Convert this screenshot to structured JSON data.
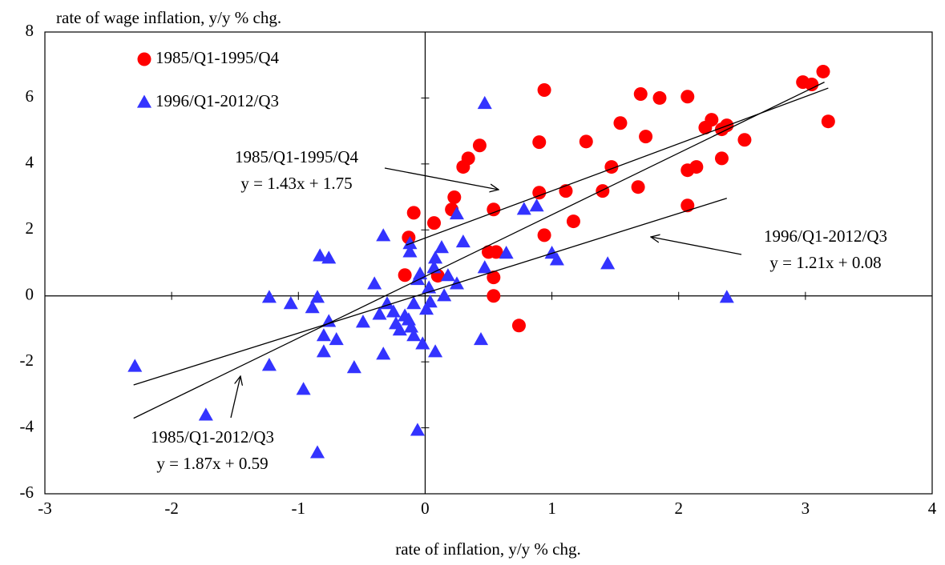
{
  "chart_data": {
    "type": "scatter",
    "y_label": "rate of wage inflation, y/y % chg.",
    "x_label": "rate of inflation, y/y % chg.",
    "xlim": [
      -3,
      4
    ],
    "xticks": [
      -3,
      -2,
      -1,
      0,
      1,
      2,
      3,
      4
    ],
    "ylim": [
      -6,
      8
    ],
    "yticks": [
      -6,
      -4,
      -2,
      0,
      2,
      4,
      6,
      8
    ],
    "legend": "upper left",
    "series": [
      {
        "name": "1985/Q1-1995/Q4",
        "color": "#ff0000",
        "marker": "circle",
        "x": [
          3.14,
          2.98,
          3.05,
          3.18,
          2.52,
          2.38,
          2.34,
          2.21,
          2.26,
          2.34,
          2.07,
          2.14,
          2.07,
          2.07,
          1.7,
          1.85,
          1.74,
          1.54,
          1.47,
          1.4,
          1.68,
          1.17,
          1.27,
          1.11,
          0.94,
          0.9,
          0.9,
          0.94,
          0.74,
          0.43,
          0.3,
          0.34,
          0.54,
          0.5,
          0.56,
          0.54,
          0.54,
          0.23,
          0.21,
          0.07,
          -0.09,
          -0.13,
          -0.16,
          0.1
        ],
        "values": [
          6.8,
          6.48,
          6.41,
          5.29,
          4.73,
          5.17,
          5.05,
          5.1,
          5.34,
          4.17,
          6.04,
          3.91,
          3.81,
          2.74,
          6.12,
          6.0,
          4.83,
          5.24,
          3.91,
          3.18,
          3.3,
          2.26,
          4.68,
          3.18,
          6.24,
          4.66,
          3.13,
          1.84,
          -0.9,
          4.56,
          3.91,
          4.17,
          2.62,
          1.33,
          1.33,
          0.56,
          0.0,
          2.99,
          2.62,
          2.21,
          2.52,
          1.77,
          0.63,
          0.61
        ]
      },
      {
        "name": "1996/Q1-2012/Q3",
        "color": "#3333ff",
        "marker": "triangle",
        "x": [
          -2.29,
          -1.73,
          -1.23,
          -1.23,
          -1.06,
          -0.96,
          -0.89,
          -0.85,
          -0.85,
          -0.83,
          -0.76,
          -0.8,
          -0.8,
          -0.76,
          -0.7,
          -0.56,
          -0.49,
          -0.4,
          -0.36,
          -0.33,
          -0.33,
          -0.3,
          -0.25,
          -0.23,
          -0.2,
          -0.16,
          -0.13,
          -0.11,
          -0.09,
          -0.12,
          -0.12,
          -0.06,
          -0.09,
          -0.04,
          -0.02,
          -0.06,
          0.01,
          0.03,
          0.04,
          0.07,
          0.08,
          0.08,
          0.13,
          0.15,
          0.18,
          0.25,
          0.25,
          0.3,
          0.47,
          0.47,
          0.44,
          0.64,
          0.78,
          0.88,
          1.0,
          1.04,
          1.44,
          2.38
        ],
        "values": [
          -2.14,
          -3.62,
          -2.11,
          -0.05,
          -0.24,
          -2.84,
          -0.36,
          -0.05,
          -4.76,
          1.21,
          1.14,
          -1.21,
          -1.7,
          -0.78,
          -1.33,
          -2.18,
          -0.8,
          0.36,
          -0.56,
          1.82,
          -1.77,
          -0.24,
          -0.49,
          -0.85,
          -1.04,
          -0.61,
          -0.73,
          -0.95,
          -1.21,
          1.58,
          1.33,
          0.49,
          -0.24,
          0.66,
          -1.46,
          -4.08,
          -0.41,
          0.24,
          -0.19,
          0.85,
          1.14,
          -1.7,
          1.46,
          0.0,
          0.61,
          0.36,
          2.48,
          1.63,
          5.83,
          0.85,
          -1.33,
          1.29,
          2.62,
          2.72,
          1.29,
          1.09,
          0.97,
          -0.05
        ]
      }
    ],
    "trend_lines": [
      {
        "label": [
          "1985/Q1-1995/Q4",
          "y = 1.43x + 1.75"
        ],
        "x": [
          -0.15,
          3.18
        ],
        "y": [
          1.54,
          6.3
        ]
      },
      {
        "label": [
          "1996/Q1-2012/Q3",
          "y = 1.21x + 0.08"
        ],
        "x": [
          -2.3,
          2.38
        ],
        "y": [
          -2.7,
          2.96
        ]
      },
      {
        "label": [
          "1985/Q1-2012/Q3",
          "y = 1.87x + 0.59"
        ],
        "x": [
          -2.3,
          3.15
        ],
        "y": [
          -3.71,
          6.48
        ]
      }
    ]
  }
}
